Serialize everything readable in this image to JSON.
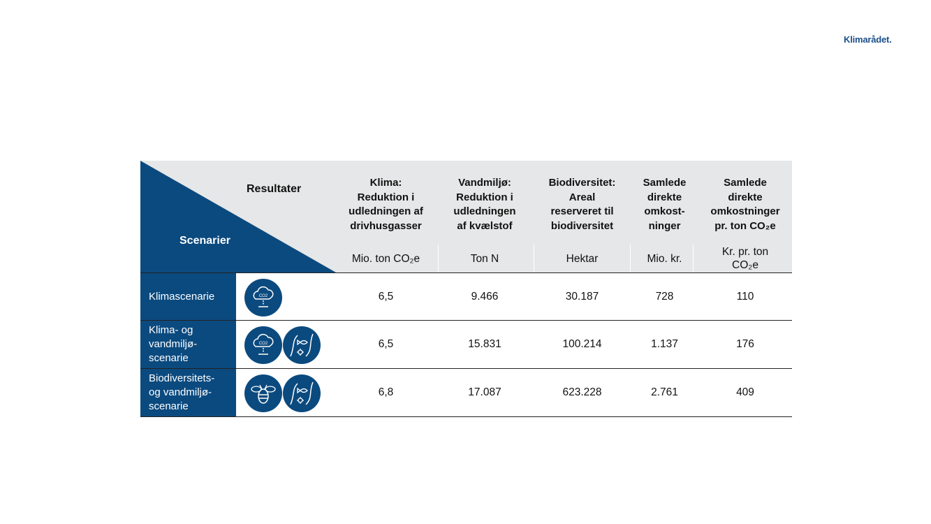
{
  "brand": {
    "logo_text": "Klimarådet."
  },
  "table": {
    "corner": {
      "scenarios_label": "Scenarier",
      "results_label": "Resultater"
    },
    "columns": [
      {
        "title": "Klima:\nReduktion i\nudledningen af\ndrivhusgasser",
        "unit": "Mio. ton CO₂e"
      },
      {
        "title": "Vandmiljø:\nReduktion i\nudledningen\naf kvælstof",
        "unit": "Ton N"
      },
      {
        "title": "Biodiversitet:\nAreal\nreserveret til\nbiodiversitet",
        "unit": "Hektar"
      },
      {
        "title": "Samlede\ndirekte\nomkost-\nninger",
        "unit": "Mio. kr."
      },
      {
        "title": "Samlede\ndirekte\nomkostninger\npr. ton CO₂e",
        "unit": "Kr. pr. ton CO₂e"
      }
    ],
    "rows": [
      {
        "name": "Klimascenarie",
        "icons": [
          "co2-cloud-icon"
        ],
        "values": [
          "6,5",
          "9.466",
          "30.187",
          "728",
          "110"
        ]
      },
      {
        "name": "Klima- og\nvandmiljø-\nscenarie",
        "icons": [
          "co2-cloud-icon",
          "water-fish-icon"
        ],
        "values": [
          "6,5",
          "15.831",
          "100.214",
          "1.137",
          "176"
        ]
      },
      {
        "name": "Biodiversitets-\nog vandmiljø-\nscenarie",
        "icons": [
          "bee-icon",
          "water-fish-icon"
        ],
        "values": [
          "6,8",
          "17.087",
          "623.228",
          "2.761",
          "409"
        ]
      }
    ]
  },
  "colors": {
    "primary_blue": "#0b4a7f",
    "header_grey": "#e6e7e8",
    "logo_blue": "#1b4f8a"
  }
}
